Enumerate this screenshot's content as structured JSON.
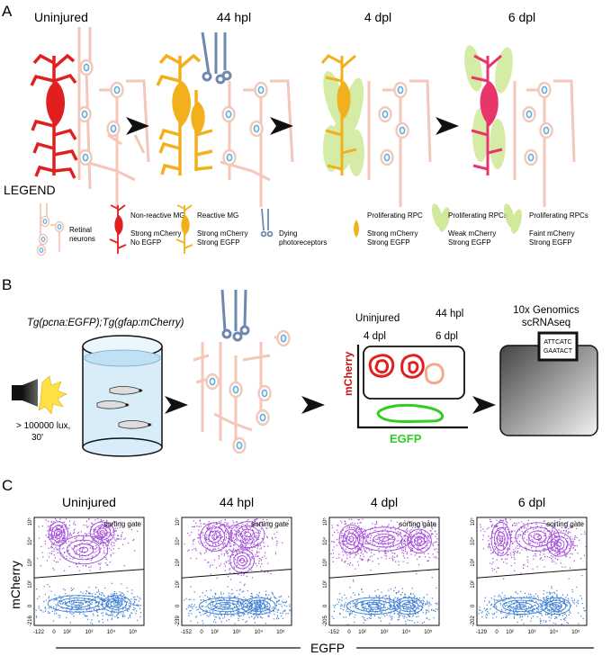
{
  "panel_a": {
    "label": "A",
    "stages": [
      "Uninjured",
      "44 hpl",
      "4 dpl",
      "6 dpl"
    ],
    "legend_title": "LEGEND",
    "legend": {
      "retinal": [
        "Retinal",
        "neurons"
      ],
      "nonreactive": [
        "Non-reactive MG",
        "Strong mCherry",
        "No EGFP"
      ],
      "reactive": [
        "Reactive MG",
        "Strong mCherry",
        "Strong EGFP"
      ],
      "dying": [
        "Dying",
        "photoreceptors"
      ],
      "prolif_rpc": [
        "Proliferating RPC",
        "Strong mCherry",
        "Strong EGFP"
      ],
      "prolif_weak": [
        "Proliferating RPCs",
        "Weak mCherry",
        "Strong EGFP"
      ],
      "prolif_faint": [
        "Proliferating RPCs",
        "Faint mCherry",
        "Strong EGFP"
      ]
    }
  },
  "panel_b": {
    "label": "B",
    "genotype": "Tg(pcna:EGFP);Tg(gfap:mCherry)",
    "light": [
      "> 100000 lux,",
      "30'"
    ],
    "groups": [
      "Uninjured",
      "44 hpl",
      "4 dpl",
      "6 dpl"
    ],
    "y_axis": "mCherry",
    "x_axis": "EGFP",
    "seq": [
      "10x Genomics",
      "scRNAseq"
    ],
    "barcodes": [
      "ATTCATC",
      "GAATACT"
    ]
  },
  "panel_c": {
    "label": "C",
    "titles": [
      "Uninjured",
      "44 hpl",
      "4 dpl",
      "6 dpl"
    ],
    "gate_label": "sorting gate",
    "y_label": "mCherry",
    "x_label": "EGFP",
    "x_ticks": [
      [
        "-122",
        "0",
        "10²",
        "10³",
        "10⁴",
        "10⁵"
      ],
      [
        "-152",
        "0",
        "10²",
        "10³",
        "10⁴",
        "10⁵"
      ],
      [
        "-152",
        "0",
        "10²",
        "10³",
        "10⁴",
        "10⁵"
      ],
      [
        "-129",
        "0",
        "10²",
        "10³",
        "10⁴",
        "10⁵"
      ]
    ],
    "y_ticks": [
      [
        "-216",
        "0",
        "10²",
        "10³",
        "10⁴",
        "10⁵"
      ],
      [
        "-239",
        "0",
        "10²",
        "10³",
        "10⁴",
        "10⁵"
      ],
      [
        "-205",
        "0",
        "10²",
        "10³",
        "10⁴",
        "10⁵"
      ],
      [
        "-202",
        "0",
        "10²",
        "10³",
        "10⁴",
        "10⁵"
      ]
    ]
  },
  "colors": {
    "mg_red": "#e0201e",
    "mg_orange": "#f2b11c",
    "neuron": "#f4c7b8",
    "neuron_nucleus": "#5aaee0",
    "photoreceptor": "#6e88b0",
    "rpc_green": "#c8e68a",
    "rpc_magenta": "#e8356a",
    "facs_purple": "#a24cd8",
    "facs_blue": "#3f7fd4",
    "egfp_green": "#33cc22",
    "mcherry_red": "#c81414"
  }
}
